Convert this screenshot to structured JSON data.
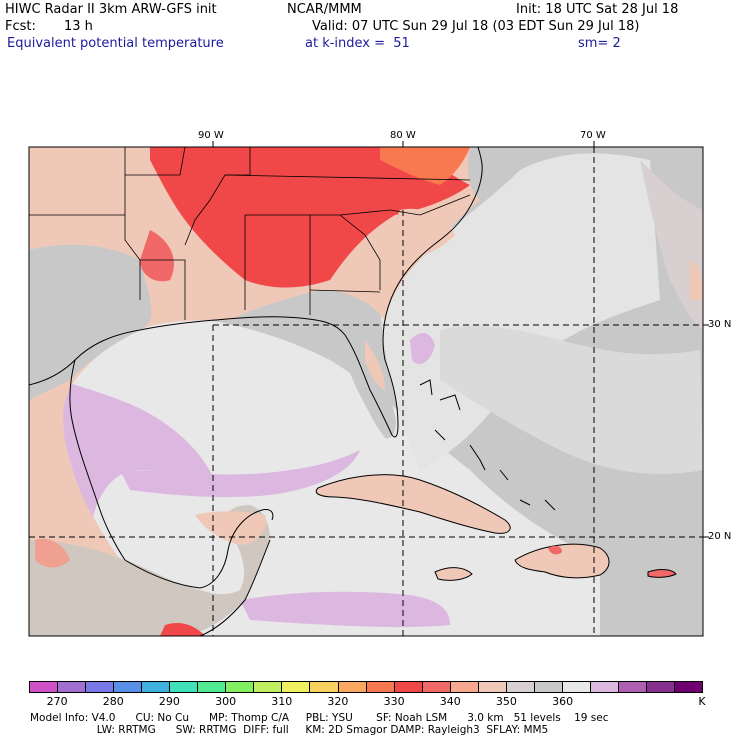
{
  "header": {
    "model": "HIWC Radar II 3km ARW-GFS init",
    "org": "NCAR/MMM",
    "init": "Init: 18 UTC Sat 28 Jul 18",
    "fcst_label": "Fcst:",
    "fcst_value": "13 h",
    "valid": "Valid: 07 UTC Sun 29 Jul 18 (03 EDT Sun 29 Jul 18)",
    "field": "Equivalent potential temperature",
    "level": "at k-index =  51",
    "smooth": "sm= 2"
  },
  "map": {
    "lon_labels": [
      "90 W",
      "80 W",
      "70 W"
    ],
    "lat_labels": [
      "30 N",
      "20 N"
    ]
  },
  "colorbar": {
    "colors": [
      "#d050c8",
      "#a070d0",
      "#7878e8",
      "#5890e8",
      "#40b0e0",
      "#40e0b8",
      "#50e890",
      "#80f060",
      "#c0f060",
      "#f0f060",
      "#f8d060",
      "#f8a860",
      "#f87850",
      "#f04848",
      "#f06868",
      "#f8a890",
      "#f0c8b8",
      "#d8d0d0",
      "#c8c8c8",
      "#e8e8e8",
      "#dcb8e0",
      "#b060b0",
      "#883090",
      "#700070"
    ],
    "ticks": [
      "270",
      "280",
      "290",
      "300",
      "310",
      "320",
      "330",
      "340",
      "350",
      "360"
    ],
    "unit": "K"
  },
  "footer": {
    "line1": "Model Info: V4.0      CU: No Cu      MP: Thomp C/A     PBL: YSU       SF: Noah LSM      3.0 km   51 levels    19 sec",
    "line2": "                    LW: RRTMG      SW: RRTMG  DIFF: full     KM: 2D Smagor DAMP: Rayleigh3  SFLAY: MM5"
  }
}
